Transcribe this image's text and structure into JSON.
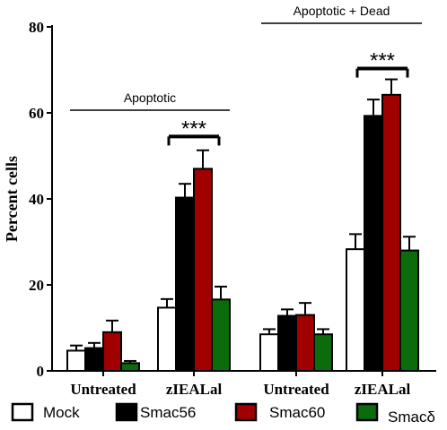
{
  "chart_data": {
    "type": "bar",
    "ylabel": "Percent cells",
    "xlabel": "",
    "ylim": [
      0,
      80
    ],
    "yticks": [
      0,
      20,
      40,
      60,
      80
    ],
    "categories": [
      "Untreated",
      "zIEALal",
      "Untreated",
      "zIEALal"
    ],
    "group_labels": [
      {
        "text": "Apoptotic",
        "category_span": [
          0,
          1
        ]
      },
      {
        "text": "Apoptotic + Dead",
        "category_span": [
          2,
          3
        ]
      }
    ],
    "series": [
      {
        "name": "Mock",
        "color": "#ffffff",
        "values": [
          4.7,
          14.7,
          8.5,
          28.3
        ],
        "errors": [
          1.2,
          2.0,
          1.2,
          3.5
        ]
      },
      {
        "name": "Smac56",
        "color": "#000000",
        "values": [
          5.3,
          40.3,
          12.8,
          59.3
        ],
        "errors": [
          1.2,
          3.2,
          1.5,
          3.8
        ]
      },
      {
        "name": "Smac60",
        "color": "#a00000",
        "values": [
          9.0,
          47.0,
          13.0,
          64.2
        ],
        "errors": [
          2.7,
          4.3,
          2.8,
          3.6
        ]
      },
      {
        "name": "Smacδ",
        "color": "#0b6c0b",
        "values": [
          1.8,
          16.6,
          8.5,
          28.0
        ],
        "errors": [
          0.5,
          3.0,
          1.2,
          3.2
        ]
      }
    ],
    "annotations": [
      {
        "text": "***",
        "category": 1,
        "series_span": [
          1,
          2
        ],
        "y": 54.5
      },
      {
        "text": "***",
        "category": 3,
        "series_span": [
          1,
          2
        ],
        "y": 70.3
      }
    ],
    "legend_position": "bottom"
  }
}
